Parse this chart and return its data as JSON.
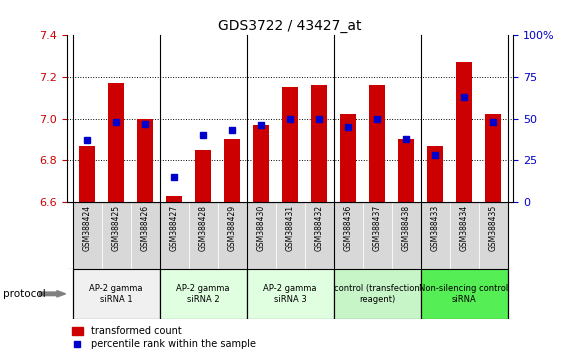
{
  "title": "GDS3722 / 43427_at",
  "samples": [
    "GSM388424",
    "GSM388425",
    "GSM388426",
    "GSM388427",
    "GSM388428",
    "GSM388429",
    "GSM388430",
    "GSM388431",
    "GSM388432",
    "GSM388436",
    "GSM388437",
    "GSM388438",
    "GSM388433",
    "GSM388434",
    "GSM388435"
  ],
  "transformed_count": [
    6.87,
    7.17,
    7.0,
    6.63,
    6.85,
    6.9,
    6.97,
    7.15,
    7.16,
    7.02,
    7.16,
    6.9,
    6.87,
    7.27,
    7.02
  ],
  "percentile_rank": [
    37,
    48,
    47,
    15,
    40,
    43,
    46,
    50,
    50,
    45,
    50,
    38,
    28,
    63,
    48
  ],
  "bar_color": "#cc0000",
  "dot_color": "#0000cc",
  "ylim_left": [
    6.6,
    7.4
  ],
  "ylim_right": [
    0,
    100
  ],
  "yticks_left": [
    6.6,
    6.8,
    7.0,
    7.2,
    7.4
  ],
  "yticks_right": [
    0,
    25,
    50,
    75,
    100
  ],
  "groups": [
    {
      "label": "AP-2 gamma\nsiRNA 1",
      "start": 0,
      "end": 3,
      "color": "#f0f0f0"
    },
    {
      "label": "AP-2 gamma\nsiRNA 2",
      "start": 3,
      "end": 6,
      "color": "#e0ffe0"
    },
    {
      "label": "AP-2 gamma\nsiRNA 3",
      "start": 6,
      "end": 9,
      "color": "#e0ffe0"
    },
    {
      "label": "control (transfection\nreagent)",
      "start": 9,
      "end": 12,
      "color": "#c8f5c8"
    },
    {
      "label": "Non-silencing control\nsiRNA",
      "start": 12,
      "end": 15,
      "color": "#55ee55"
    }
  ],
  "tick_label_color_left": "#cc0000",
  "tick_label_color_right": "#0000cc",
  "legend_transformed": "transformed count",
  "legend_percentile": "percentile rank within the sample",
  "bar_width": 0.55,
  "protocol_label": "protocol"
}
